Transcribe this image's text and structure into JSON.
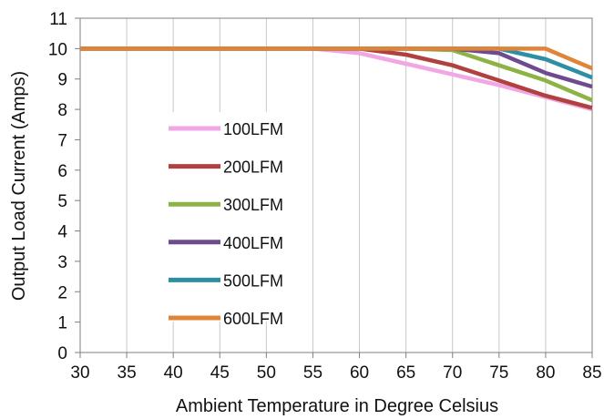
{
  "chart_data": {
    "type": "line",
    "title": "",
    "xlabel": "Ambient Temperature in Degree Celsius",
    "ylabel": "Output Load Current (Amps)",
    "xlim": [
      30,
      85
    ],
    "ylim": [
      0,
      11
    ],
    "xticks": [
      30,
      35,
      40,
      45,
      50,
      55,
      60,
      65,
      70,
      75,
      80,
      85
    ],
    "yticks": [
      0,
      1,
      2,
      3,
      4,
      5,
      6,
      7,
      8,
      9,
      10,
      11
    ],
    "grid": "vertical",
    "legend_position": "center-left",
    "series": [
      {
        "name": "100LFM",
        "color": "#f1a7e3",
        "x": [
          30,
          55,
          60,
          65,
          70,
          75,
          80,
          85
        ],
        "y": [
          10,
          10,
          9.85,
          9.5,
          9.15,
          8.8,
          8.4,
          8.0
        ]
      },
      {
        "name": "200LFM",
        "color": "#b0413e",
        "x": [
          30,
          55,
          60,
          65,
          70,
          75,
          80,
          85
        ],
        "y": [
          10,
          10,
          10,
          9.8,
          9.45,
          8.95,
          8.45,
          8.05
        ]
      },
      {
        "name": "300LFM",
        "color": "#8db344",
        "x": [
          30,
          55,
          60,
          65,
          70,
          75,
          80,
          85
        ],
        "y": [
          10,
          10,
          10,
          10,
          9.95,
          9.45,
          8.95,
          8.3
        ]
      },
      {
        "name": "400LFM",
        "color": "#6e4b8e",
        "x": [
          30,
          55,
          60,
          65,
          70,
          75,
          80,
          85
        ],
        "y": [
          10,
          10,
          10,
          10,
          10,
          9.85,
          9.2,
          8.75
        ]
      },
      {
        "name": "500LFM",
        "color": "#2e8fa3",
        "x": [
          30,
          55,
          60,
          65,
          70,
          75,
          80,
          85
        ],
        "y": [
          10,
          10,
          10,
          10,
          10,
          10,
          9.65,
          9.05
        ]
      },
      {
        "name": "600LFM",
        "color": "#e0843a",
        "x": [
          30,
          55,
          60,
          65,
          70,
          75,
          80,
          85
        ],
        "y": [
          10,
          10,
          10,
          10,
          10,
          10,
          10,
          9.35
        ]
      }
    ]
  }
}
